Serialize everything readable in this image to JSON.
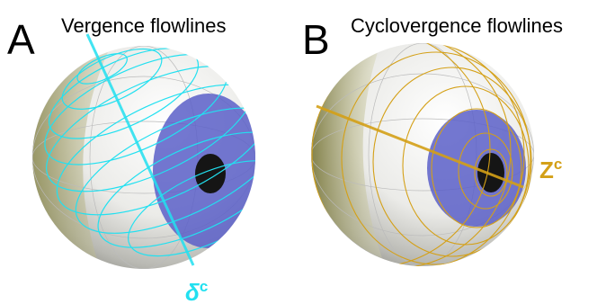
{
  "panels": [
    {
      "letter": "A",
      "title": "Vergence flowlines",
      "axis_symbol": "δ",
      "axis_superscript": "c"
    },
    {
      "letter": "B",
      "title": "Cyclovergence flowlines",
      "axis_symbol": "Z",
      "axis_superscript": "c"
    }
  ]
}
